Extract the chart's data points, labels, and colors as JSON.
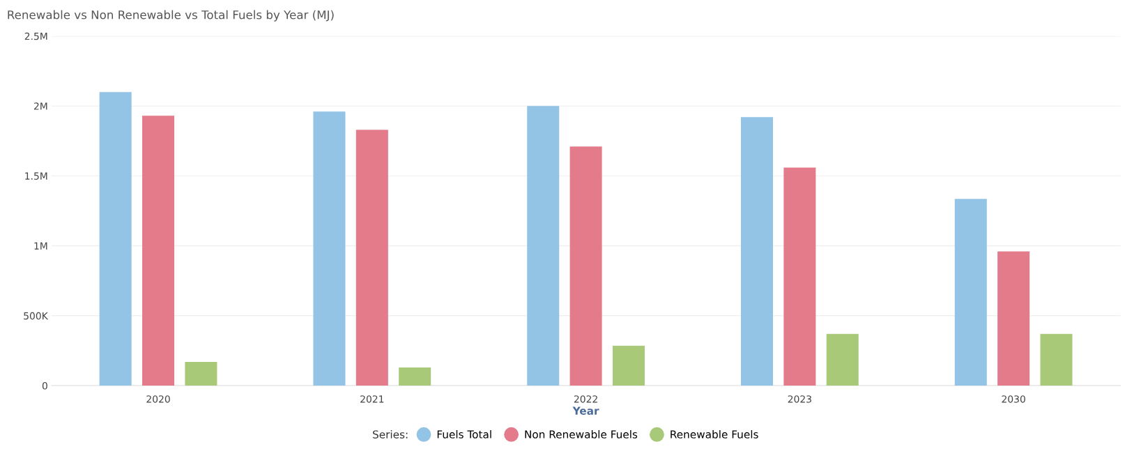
{
  "chart_data": {
    "type": "bar",
    "title": "Renewable vs Non Renewable vs Total Fuels by Year (MJ)",
    "xlabel": "Year",
    "legend_title": "Series:",
    "categories": [
      "2020",
      "2021",
      "2022",
      "2023",
      "2030"
    ],
    "series": [
      {
        "name": "Fuels Total",
        "color": "#93c4e5",
        "values": [
          2100000,
          1960000,
          2000000,
          1920000,
          1335000
        ]
      },
      {
        "name": "Non Renewable Fuels",
        "color": "#e37b8b",
        "values": [
          1930000,
          1830000,
          1710000,
          1560000,
          960000
        ]
      },
      {
        "name": "Renewable Fuels",
        "color": "#a8c977",
        "values": [
          170000,
          130000,
          285000,
          370000,
          370000
        ]
      }
    ],
    "ylim": [
      0,
      2500000
    ],
    "yticks": [
      {
        "value": 0,
        "label": "0"
      },
      {
        "value": 500000,
        "label": "500K"
      },
      {
        "value": 1000000,
        "label": "1M"
      },
      {
        "value": 1500000,
        "label": "1.5M"
      },
      {
        "value": 2000000,
        "label": "2M"
      },
      {
        "value": 2500000,
        "label": "2.5M"
      }
    ],
    "grid": "y",
    "legend": "bottom"
  }
}
